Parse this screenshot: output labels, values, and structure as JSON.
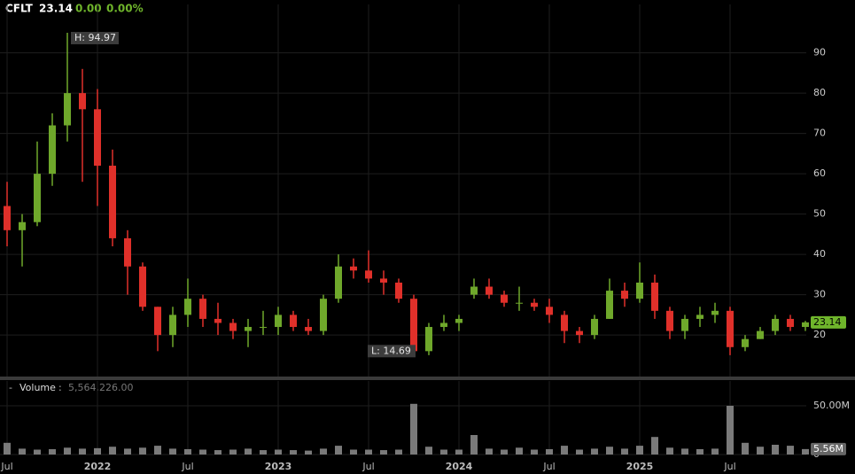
{
  "chart_data": {
    "type": "candlestick",
    "symbol": "CFLT",
    "last": 23.14,
    "change": {
      "value": 0,
      "label": "0.00"
    },
    "change_pct": {
      "value": 0,
      "label": "0.00%"
    },
    "up_color": "#6fa82b",
    "down_color": "#e0302a",
    "grid": true,
    "categories": [
      "Jul",
      null,
      null,
      null,
      null,
      null,
      "2022",
      null,
      null,
      null,
      null,
      null,
      "Jul",
      null,
      null,
      null,
      null,
      null,
      "2023",
      null,
      null,
      null,
      null,
      null,
      "Jul",
      null,
      null,
      null,
      null,
      null,
      "2024",
      null,
      null,
      null,
      null,
      null,
      "Jul",
      null,
      null,
      null,
      null,
      null,
      "2025",
      null,
      null,
      null,
      null,
      null,
      "Jul",
      null,
      null,
      null,
      null,
      null
    ],
    "open": [
      52,
      46,
      48,
      60,
      72,
      80,
      76,
      62,
      44,
      37,
      27,
      20,
      25,
      29,
      24,
      23,
      21,
      22,
      22,
      25,
      22,
      21,
      29,
      37,
      36,
      34,
      33,
      29,
      16,
      22,
      23,
      30,
      32,
      30,
      28,
      28,
      27,
      25,
      21,
      20,
      24,
      31,
      29,
      33,
      26,
      21,
      24,
      25,
      26,
      17,
      19,
      21,
      24,
      22
    ],
    "high": [
      58,
      50,
      68,
      75,
      94.97,
      86,
      81,
      66,
      46,
      38,
      27,
      27,
      34,
      30,
      28,
      24,
      24,
      26,
      27,
      26,
      24,
      30,
      40,
      39,
      41,
      36,
      34,
      30,
      23,
      25,
      25,
      34,
      34,
      31,
      32,
      29,
      29,
      26,
      22,
      25,
      34,
      33,
      38,
      35,
      27,
      25,
      27,
      28,
      27,
      20,
      22,
      25,
      25,
      23.5
    ],
    "low": [
      42,
      37,
      47,
      57,
      68,
      58,
      52,
      42,
      30,
      26,
      16,
      17,
      22,
      22,
      20,
      19,
      17,
      20,
      20,
      21,
      20,
      20,
      28,
      34,
      33,
      30,
      28,
      14.69,
      15,
      21,
      21,
      29,
      29,
      27,
      26,
      26,
      23,
      18,
      18,
      19,
      24,
      27,
      28,
      24,
      19,
      19,
      22,
      23,
      15,
      16,
      19,
      20,
      21,
      21
    ],
    "close": [
      46,
      48,
      60,
      72,
      80,
      76,
      62,
      44,
      37,
      27,
      20,
      25,
      29,
      24,
      23,
      21,
      22,
      22,
      25,
      22,
      21,
      29,
      37,
      36,
      34,
      33,
      29,
      16,
      22,
      23,
      24,
      32,
      30,
      28,
      28,
      27,
      25,
      21,
      20,
      24,
      31,
      29,
      33,
      26,
      21,
      24,
      25,
      26,
      17,
      19,
      21,
      24,
      22,
      23.14
    ],
    "ylim": [
      9.7,
      102
    ],
    "yticks": [
      20,
      30,
      40,
      50,
      60,
      70,
      80,
      90
    ],
    "annotations": [
      {
        "text": "H: 94.97",
        "value": 94.97
      },
      {
        "text": "L: 14.69",
        "value": 14.69
      }
    ],
    "volume": {
      "name": "Volume",
      "color": "#7a7a7a",
      "values": [
        12000000,
        6000000,
        5000000,
        5500000,
        7000000,
        6000000,
        6500000,
        8000000,
        6000000,
        7000000,
        9000000,
        6000000,
        5500000,
        5000000,
        4500000,
        5000000,
        6000000,
        4500000,
        5000000,
        4500000,
        4000000,
        6000000,
        9000000,
        5000000,
        5000000,
        4500000,
        5000000,
        52000000,
        8000000,
        5000000,
        5000000,
        20000000,
        6000000,
        5000000,
        7000000,
        5000000,
        5500000,
        9000000,
        5000000,
        6000000,
        8000000,
        6000000,
        9000000,
        18000000,
        7000000,
        6000000,
        5500000,
        6000000,
        50000000,
        12000000,
        8000000,
        10000000,
        9000000,
        5564226
      ],
      "last_label": "5,564,226.00",
      "badge_label": "5.56M",
      "ylim": [
        0,
        60000000
      ],
      "yticks": [
        0,
        {
          "value": 50000000,
          "label": "50.00M"
        }
      ]
    }
  }
}
